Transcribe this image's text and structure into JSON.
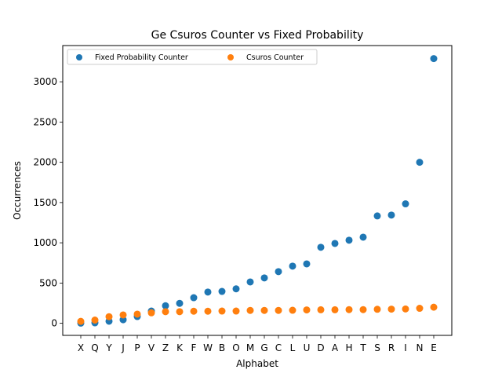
{
  "chart_data": {
    "type": "scatter",
    "title": "Ge Csuros Counter vs Fixed Probability",
    "xlabel": "Alphabet",
    "ylabel": "Occurrences",
    "categories": [
      "X",
      "Q",
      "Y",
      "J",
      "P",
      "V",
      "Z",
      "K",
      "F",
      "W",
      "B",
      "O",
      "M",
      "G",
      "C",
      "L",
      "U",
      "D",
      "A",
      "H",
      "T",
      "S",
      "R",
      "I",
      "N",
      "E"
    ],
    "ylim": [
      -150,
      3450
    ],
    "yticks": [
      0,
      500,
      1000,
      1500,
      2000,
      2500,
      3000
    ],
    "grid": false,
    "legend_position": "top-left",
    "series": [
      {
        "name": "Fixed Probability Counter",
        "color": "#1f77b4",
        "values": [
          2,
          6,
          26,
          44,
          84,
          152,
          218,
          248,
          318,
          388,
          396,
          428,
          514,
          564,
          642,
          710,
          738,
          944,
          992,
          1032,
          1070,
          1334,
          1344,
          1484,
          2000,
          3288
        ]
      },
      {
        "name": "Csuros Counter",
        "color": "#ff7f0e",
        "values": [
          24,
          40,
          82,
          104,
          114,
          130,
          144,
          144,
          150,
          150,
          152,
          152,
          160,
          160,
          160,
          162,
          166,
          168,
          168,
          170,
          170,
          174,
          176,
          178,
          186,
          200
        ]
      }
    ]
  }
}
